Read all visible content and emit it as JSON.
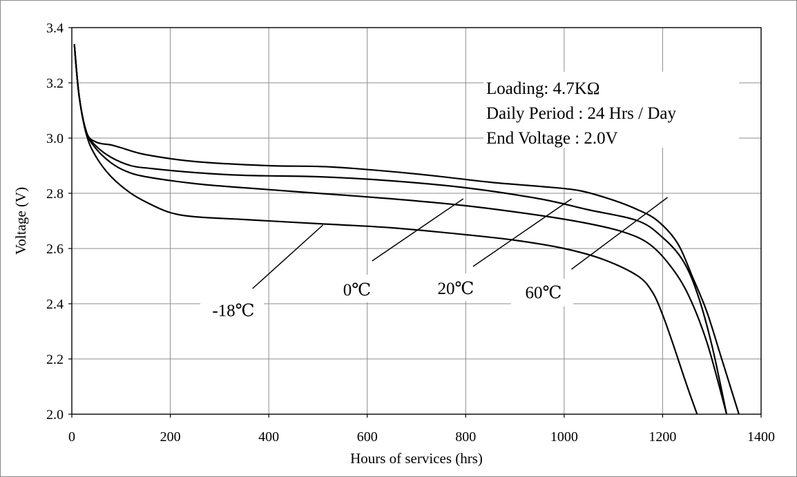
{
  "chart_data": {
    "type": "line",
    "xlabel": "Hours of services (hrs)",
    "ylabel": "Voltage (V)",
    "xlim": [
      0,
      1400
    ],
    "ylim": [
      2.0,
      3.4
    ],
    "x_ticks": [
      0,
      200,
      400,
      600,
      800,
      1000,
      1200,
      1400
    ],
    "y_ticks": [
      "2.0",
      "2.2",
      "2.4",
      "2.6",
      "2.8",
      "3.0",
      "3.2",
      "3.4"
    ],
    "grid": true,
    "annotations": [
      "Loading: 4.7KΩ",
      "Daily Period : 24 Hrs / Day",
      "End Voltage : 2.0V"
    ],
    "series": [
      {
        "name": "-18℃",
        "x": [
          5,
          15,
          30,
          50,
          80,
          120,
          160,
          200,
          250,
          350,
          500,
          650,
          800,
          900,
          1000,
          1080,
          1150,
          1180,
          1200,
          1220,
          1250,
          1270
        ],
        "y": [
          3.34,
          3.15,
          3.01,
          2.93,
          2.86,
          2.8,
          2.76,
          2.73,
          2.715,
          2.705,
          2.69,
          2.675,
          2.65,
          2.63,
          2.6,
          2.56,
          2.5,
          2.44,
          2.36,
          2.26,
          2.1,
          2.0
        ]
      },
      {
        "name": "0℃",
        "x": [
          5,
          15,
          30,
          50,
          80,
          110,
          150,
          250,
          350,
          500,
          650,
          800,
          950,
          1050,
          1120,
          1170,
          1210,
          1250,
          1290,
          1330
        ],
        "y": [
          3.34,
          3.15,
          3.02,
          2.96,
          2.91,
          2.88,
          2.86,
          2.835,
          2.82,
          2.8,
          2.78,
          2.755,
          2.72,
          2.69,
          2.66,
          2.62,
          2.55,
          2.44,
          2.26,
          2.0
        ]
      },
      {
        "name": "20℃",
        "x": [
          5,
          15,
          30,
          50,
          80,
          120,
          160,
          250,
          350,
          500,
          650,
          800,
          950,
          1050,
          1150,
          1200,
          1240,
          1270,
          1300,
          1330
        ],
        "y": [
          3.34,
          3.15,
          3.02,
          2.97,
          2.93,
          2.9,
          2.89,
          2.875,
          2.865,
          2.86,
          2.845,
          2.82,
          2.78,
          2.74,
          2.7,
          2.64,
          2.56,
          2.44,
          2.25,
          2.0
        ]
      },
      {
        "name": "60℃",
        "x": [
          5,
          15,
          30,
          50,
          80,
          100,
          150,
          250,
          400,
          530,
          700,
          850,
          950,
          1030,
          1100,
          1150,
          1190,
          1230,
          1260,
          1290,
          1320,
          1355
        ],
        "y": [
          3.34,
          3.15,
          3.02,
          2.985,
          2.975,
          2.965,
          2.94,
          2.915,
          2.9,
          2.895,
          2.87,
          2.84,
          2.825,
          2.81,
          2.775,
          2.74,
          2.7,
          2.62,
          2.5,
          2.37,
          2.2,
          2.0
        ]
      }
    ],
    "series_labels": [
      "-18℃",
      "0℃",
      "20℃",
      "60℃"
    ]
  }
}
